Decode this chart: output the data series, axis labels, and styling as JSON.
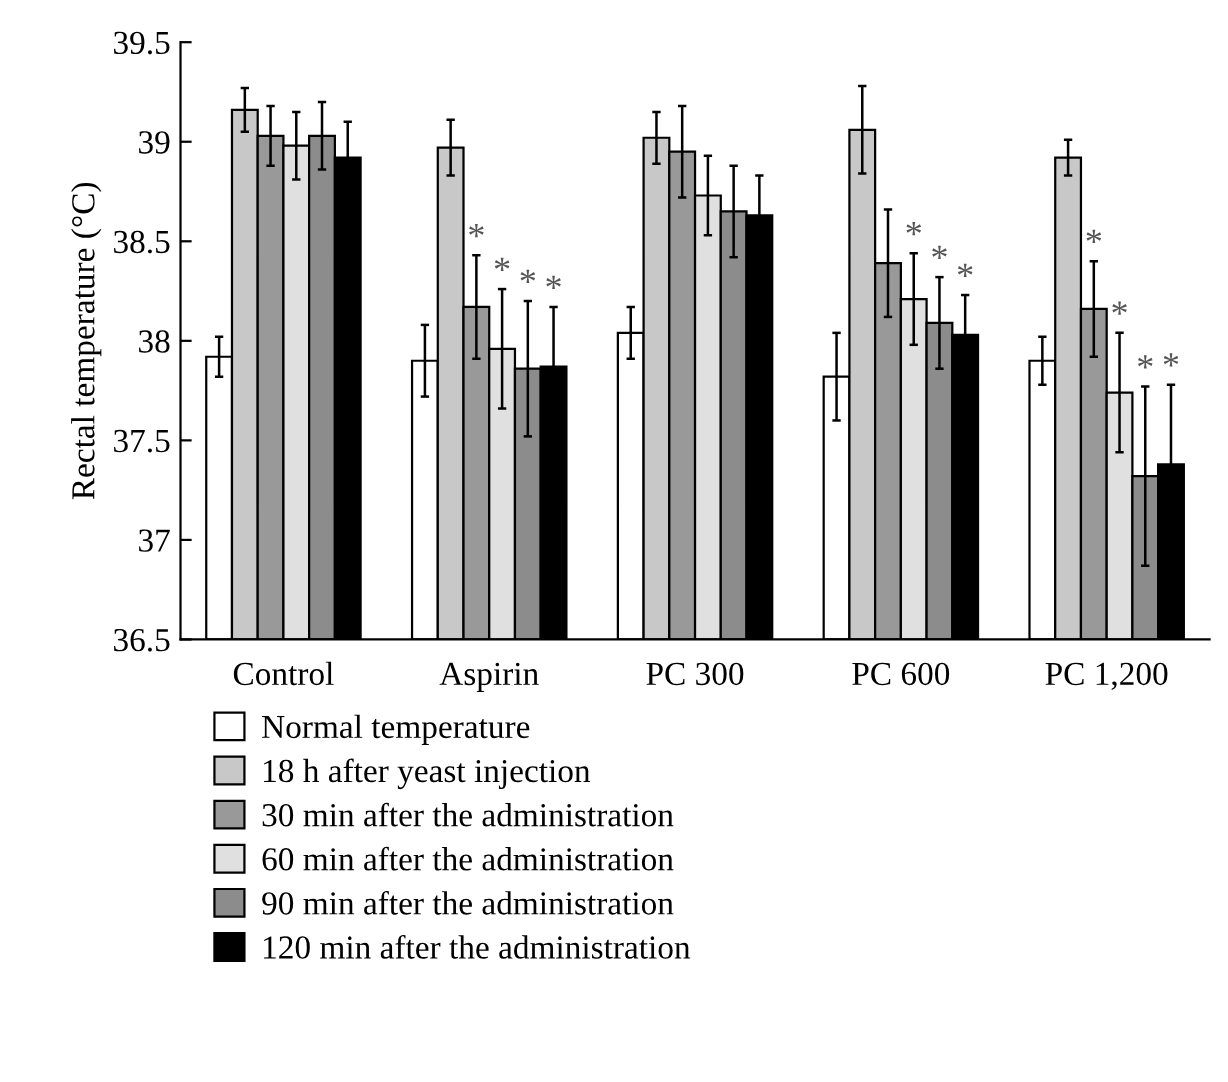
{
  "chart_data": {
    "type": "bar",
    "ylabel": "Rectal temperature (°C)",
    "categories": [
      "Control",
      "Aspirin",
      "PC 300",
      "PC 600",
      "PC 1,200"
    ],
    "ylim": [
      36.5,
      39.5
    ],
    "yticks": [
      36.5,
      37,
      37.5,
      38,
      38.5,
      39,
      39.5
    ],
    "grid": false,
    "legend": "bottom",
    "series": [
      {
        "name": "Normal temperature",
        "color": "#ffffff",
        "values": [
          37.92,
          37.9,
          38.04,
          37.82,
          37.9
        ],
        "errors": [
          0.1,
          0.18,
          0.13,
          0.22,
          0.12
        ]
      },
      {
        "name": "18 h after yeast injection",
        "color": "#c8c8c8",
        "values": [
          39.16,
          38.97,
          39.02,
          39.06,
          38.92
        ],
        "errors": [
          0.11,
          0.14,
          0.13,
          0.22,
          0.09
        ]
      },
      {
        "name": "30 min after the administration",
        "color": "#999999",
        "values": [
          39.03,
          38.17,
          38.95,
          38.39,
          38.16
        ],
        "errors": [
          0.15,
          0.26,
          0.23,
          0.27,
          0.24
        ],
        "value_labels": [
          null,
          "*",
          null,
          null,
          "*"
        ]
      },
      {
        "name": "60 min after the administration",
        "color": "#e0e0e0",
        "values": [
          38.98,
          37.96,
          38.73,
          38.21,
          37.74
        ],
        "errors": [
          0.17,
          0.3,
          0.2,
          0.23,
          0.3
        ],
        "value_labels": [
          null,
          "*",
          null,
          "*",
          "*"
        ]
      },
      {
        "name": "90 min after the administration",
        "color": "#8c8c8c",
        "values": [
          39.03,
          37.86,
          38.65,
          38.09,
          37.32
        ],
        "errors": [
          0.17,
          0.34,
          0.23,
          0.23,
          0.45
        ],
        "value_labels": [
          null,
          "*",
          null,
          "*",
          "*"
        ]
      },
      {
        "name": "120 min after the administration",
        "color": "#000000",
        "values": [
          38.92,
          37.87,
          38.63,
          38.03,
          37.38
        ],
        "errors": [
          0.18,
          0.3,
          0.2,
          0.2,
          0.4
        ],
        "value_labels": [
          null,
          "*",
          null,
          "*",
          "*"
        ]
      }
    ]
  }
}
